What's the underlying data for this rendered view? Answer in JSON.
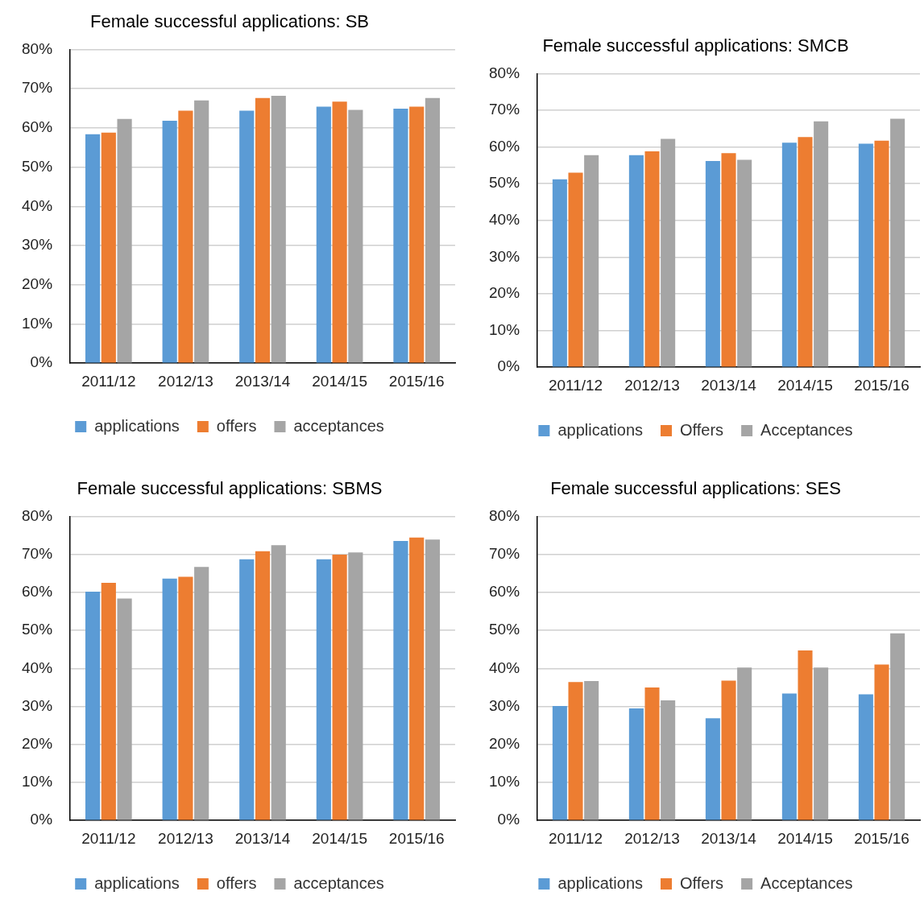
{
  "chart_data": [
    {
      "type": "bar",
      "title": "Female successful applications: SB",
      "categories": [
        "2011/12",
        "2012/13",
        "2013/14",
        "2014/15",
        "2015/16"
      ],
      "series": [
        {
          "name": "applications",
          "color": "#5b9bd5",
          "values": [
            58.4,
            61.8,
            64.4,
            65.4,
            64.9
          ]
        },
        {
          "name": "offers",
          "color": "#ed7d31",
          "values": [
            58.8,
            64.4,
            67.6,
            66.7,
            65.4
          ]
        },
        {
          "name": "acceptances",
          "color": "#a5a5a5",
          "values": [
            62.3,
            67.0,
            68.2,
            64.6,
            67.6
          ]
        }
      ],
      "ylim": [
        0,
        80
      ],
      "yticks": [
        {
          "value": 0,
          "label": "0%"
        },
        {
          "value": 10,
          "label": "10%"
        },
        {
          "value": 20,
          "label": "20%"
        },
        {
          "value": 30,
          "label": "30%"
        },
        {
          "value": 40,
          "label": "40%"
        },
        {
          "value": 50,
          "label": "50%"
        },
        {
          "value": 60,
          "label": "60%"
        },
        {
          "value": 70,
          "label": "70%"
        },
        {
          "value": 80,
          "label": "80%"
        }
      ],
      "grid": "y",
      "legend": "bottom"
    },
    {
      "type": "bar",
      "title": "Female successful applications: SMCB",
      "categories": [
        "2011/12",
        "2012/13",
        "2013/14",
        "2014/15",
        "2015/16"
      ],
      "series": [
        {
          "name": "applications",
          "color": "#5b9bd5",
          "values": [
            51.2,
            57.8,
            56.2,
            61.2,
            60.9
          ]
        },
        {
          "name": "Offers",
          "color": "#ed7d31",
          "values": [
            53.0,
            58.8,
            58.3,
            62.7,
            61.7
          ]
        },
        {
          "name": "Acceptances",
          "color": "#a5a5a5",
          "values": [
            57.8,
            62.2,
            56.5,
            67.0,
            67.7
          ]
        }
      ],
      "ylim": [
        0,
        80
      ],
      "yticks": [
        {
          "value": 0,
          "label": "0%"
        },
        {
          "value": 10,
          "label": "10%"
        },
        {
          "value": 20,
          "label": "20%"
        },
        {
          "value": 30,
          "label": "30%"
        },
        {
          "value": 40,
          "label": "40%"
        },
        {
          "value": 50,
          "label": "50%"
        },
        {
          "value": 60,
          "label": "60%"
        },
        {
          "value": 70,
          "label": "70%"
        },
        {
          "value": 80,
          "label": "80%"
        }
      ],
      "grid": "y",
      "legend": "bottom"
    },
    {
      "type": "bar",
      "title": "Female successful applications: SBMS",
      "categories": [
        "2011/12",
        "2012/13",
        "2013/14",
        "2014/15",
        "2015/16"
      ],
      "series": [
        {
          "name": "applications",
          "color": "#5b9bd5",
          "values": [
            60.2,
            63.6,
            68.7,
            68.7,
            73.5
          ]
        },
        {
          "name": "offers",
          "color": "#ed7d31",
          "values": [
            62.5,
            64.1,
            70.8,
            69.9,
            74.4
          ]
        },
        {
          "name": "acceptances",
          "color": "#a5a5a5",
          "values": [
            58.4,
            66.7,
            72.4,
            70.5,
            73.9
          ]
        }
      ],
      "ylim": [
        0,
        80
      ],
      "yticks": [
        {
          "value": 0,
          "label": "0%"
        },
        {
          "value": 10,
          "label": "10%"
        },
        {
          "value": 20,
          "label": "20%"
        },
        {
          "value": 30,
          "label": "30%"
        },
        {
          "value": 40,
          "label": "40%"
        },
        {
          "value": 50,
          "label": "50%"
        },
        {
          "value": 60,
          "label": "60%"
        },
        {
          "value": 70,
          "label": "70%"
        },
        {
          "value": 80,
          "label": "80%"
        }
      ],
      "grid": "y",
      "legend": "bottom"
    },
    {
      "type": "bar",
      "title": "Female successful applications: SES",
      "categories": [
        "2011/12",
        "2012/13",
        "2013/14",
        "2014/15",
        "2015/16"
      ],
      "series": [
        {
          "name": "applications",
          "color": "#5b9bd5",
          "values": [
            30.1,
            29.5,
            26.9,
            33.4,
            33.2
          ]
        },
        {
          "name": "Offers",
          "color": "#ed7d31",
          "values": [
            36.4,
            35.0,
            36.8,
            44.7,
            41.0
          ]
        },
        {
          "name": "Acceptances",
          "color": "#a5a5a5",
          "values": [
            36.7,
            31.6,
            40.2,
            40.2,
            49.2
          ]
        }
      ],
      "ylim": [
        0,
        80
      ],
      "yticks": [
        {
          "value": 0,
          "label": "0%"
        },
        {
          "value": 10,
          "label": "10%"
        },
        {
          "value": 20,
          "label": "20%"
        },
        {
          "value": 30,
          "label": "30%"
        },
        {
          "value": 40,
          "label": "40%"
        },
        {
          "value": 50,
          "label": "50%"
        },
        {
          "value": 60,
          "label": "60%"
        },
        {
          "value": 70,
          "label": "70%"
        },
        {
          "value": 80,
          "label": "80%"
        }
      ],
      "grid": "y",
      "legend": "bottom"
    }
  ]
}
